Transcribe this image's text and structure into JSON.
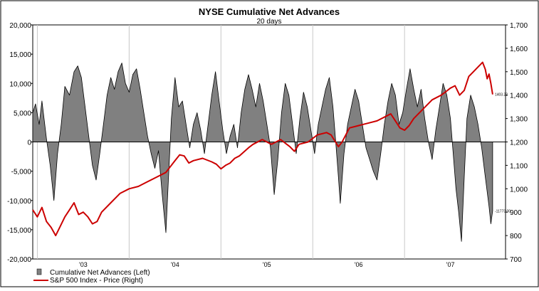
{
  "chart_data": {
    "type": "area",
    "title": "NYSE Cumulative Net Advances",
    "subtitle": "20 days",
    "x_ticks": [
      "'03",
      "'04",
      "'05",
      "'06",
      "'07"
    ],
    "x_range": [
      2002.45,
      2007.6
    ],
    "left_axis": {
      "ticks": [
        "20,000",
        "15,000",
        "10,000",
        "5,000",
        "0",
        "-5,000",
        "-10,000",
        "-15,000",
        "-20,000"
      ],
      "values": [
        20000,
        15000,
        10000,
        5000,
        0,
        -5000,
        -10000,
        -15000,
        -20000
      ],
      "range": [
        -20000,
        20000
      ]
    },
    "right_axis": {
      "ticks": [
        "1,700",
        "1,600",
        "1,500",
        "1,400",
        "1,300",
        "1,200",
        "1,100",
        "1,000",
        "900",
        "800",
        "700"
      ],
      "values": [
        1700,
        1600,
        1500,
        1400,
        1300,
        1200,
        1100,
        1000,
        900,
        800,
        700
      ],
      "range": [
        700,
        1700
      ]
    },
    "grid": "vertical",
    "legend_position": "bottom-left",
    "colors": {
      "net_advances": "#808080",
      "sp500": "#cc0000"
    },
    "last_value_labels": {
      "net_advances": "-11773.00",
      "sp500": "1403.22"
    },
    "series": [
      {
        "name": "Cumulative Net Advances (Left)",
        "axis": "left",
        "points": [
          [
            2002.45,
            5000
          ],
          [
            2002.48,
            6500
          ],
          [
            2002.52,
            3000
          ],
          [
            2002.55,
            7000
          ],
          [
            2002.6,
            500
          ],
          [
            2002.64,
            -4000
          ],
          [
            2002.68,
            -10000
          ],
          [
            2002.72,
            -2000
          ],
          [
            2002.76,
            3000
          ],
          [
            2002.8,
            9500
          ],
          [
            2002.85,
            8000
          ],
          [
            2002.9,
            12000
          ],
          [
            2002.94,
            13000
          ],
          [
            2002.98,
            11000
          ],
          [
            2003.02,
            6000
          ],
          [
            2003.06,
            1000
          ],
          [
            2003.1,
            -4000
          ],
          [
            2003.14,
            -6500
          ],
          [
            2003.18,
            -2000
          ],
          [
            2003.22,
            3000
          ],
          [
            2003.26,
            8000
          ],
          [
            2003.3,
            11000
          ],
          [
            2003.34,
            9000
          ],
          [
            2003.38,
            12000
          ],
          [
            2003.42,
            13500
          ],
          [
            2003.46,
            10000
          ],
          [
            2003.5,
            8500
          ],
          [
            2003.54,
            11500
          ],
          [
            2003.58,
            12500
          ],
          [
            2003.62,
            9000
          ],
          [
            2003.66,
            5000
          ],
          [
            2003.7,
            1000
          ],
          [
            2003.74,
            -2000
          ],
          [
            2003.78,
            -4500
          ],
          [
            2003.82,
            -1500
          ],
          [
            2003.86,
            -9000
          ],
          [
            2003.9,
            -15500
          ],
          [
            2003.92,
            -9000
          ],
          [
            2003.96,
            4000
          ],
          [
            2004.0,
            11000
          ],
          [
            2004.04,
            6000
          ],
          [
            2004.08,
            7000
          ],
          [
            2004.12,
            3000
          ],
          [
            2004.16,
            -1000
          ],
          [
            2004.2,
            3000
          ],
          [
            2004.24,
            5000
          ],
          [
            2004.28,
            2000
          ],
          [
            2004.32,
            -2000
          ],
          [
            2004.36,
            3000
          ],
          [
            2004.4,
            8000
          ],
          [
            2004.44,
            12000
          ],
          [
            2004.48,
            7000
          ],
          [
            2004.52,
            2000
          ],
          [
            2004.56,
            -2000
          ],
          [
            2004.6,
            1000
          ],
          [
            2004.64,
            3000
          ],
          [
            2004.68,
            -1000
          ],
          [
            2004.72,
            5000
          ],
          [
            2004.76,
            9000
          ],
          [
            2004.8,
            11500
          ],
          [
            2004.84,
            9000
          ],
          [
            2004.88,
            6000
          ],
          [
            2004.92,
            10000
          ],
          [
            2004.96,
            7000
          ],
          [
            2005.0,
            3000
          ],
          [
            2005.04,
            -1000
          ],
          [
            2005.06,
            -5000
          ],
          [
            2005.08,
            -9000
          ],
          [
            2005.12,
            -3000
          ],
          [
            2005.16,
            5000
          ],
          [
            2005.2,
            10000
          ],
          [
            2005.24,
            8000
          ],
          [
            2005.28,
            3000
          ],
          [
            2005.32,
            -2000
          ],
          [
            2005.36,
            4000
          ],
          [
            2005.4,
            8500
          ],
          [
            2005.44,
            6000
          ],
          [
            2005.48,
            2000
          ],
          [
            2005.52,
            -2000
          ],
          [
            2005.56,
            3000
          ],
          [
            2005.6,
            6000
          ],
          [
            2005.64,
            9000
          ],
          [
            2005.68,
            11000
          ],
          [
            2005.72,
            6000
          ],
          [
            2005.75,
            0
          ],
          [
            2005.78,
            -6000
          ],
          [
            2005.8,
            -10500
          ],
          [
            2005.84,
            -2000
          ],
          [
            2005.88,
            3000
          ],
          [
            2005.92,
            6000
          ],
          [
            2005.96,
            9000
          ],
          [
            2006.0,
            7000
          ],
          [
            2006.04,
            3000
          ],
          [
            2006.08,
            -1000
          ],
          [
            2006.12,
            -3000
          ],
          [
            2006.16,
            -5000
          ],
          [
            2006.2,
            -6500
          ],
          [
            2006.24,
            -2000
          ],
          [
            2006.28,
            3000
          ],
          [
            2006.32,
            7000
          ],
          [
            2006.36,
            10000
          ],
          [
            2006.4,
            8000
          ],
          [
            2006.44,
            3000
          ],
          [
            2006.48,
            5000
          ],
          [
            2006.52,
            9000
          ],
          [
            2006.56,
            12500
          ],
          [
            2006.6,
            9000
          ],
          [
            2006.64,
            6000
          ],
          [
            2006.68,
            9000
          ],
          [
            2006.72,
            4000
          ],
          [
            2006.76,
            0
          ],
          [
            2006.8,
            -3000
          ],
          [
            2006.84,
            2000
          ],
          [
            2006.88,
            6000
          ],
          [
            2006.92,
            10000
          ],
          [
            2006.96,
            8000
          ],
          [
            2007.0,
            4000
          ],
          [
            2007.03,
            -2000
          ],
          [
            2007.06,
            -8000
          ],
          [
            2007.09,
            -12000
          ],
          [
            2007.12,
            -17000
          ],
          [
            2007.15,
            -6000
          ],
          [
            2007.18,
            4000
          ],
          [
            2007.22,
            8000
          ],
          [
            2007.26,
            6000
          ],
          [
            2007.3,
            3000
          ],
          [
            2007.34,
            -1000
          ],
          [
            2007.38,
            -6000
          ],
          [
            2007.42,
            -11000
          ],
          [
            2007.44,
            -14000
          ],
          [
            2007.46,
            -11773
          ]
        ]
      },
      {
        "name": "S&P 500 Index - Price  (Right)",
        "axis": "right",
        "points": [
          [
            2002.45,
            910
          ],
          [
            2002.5,
            880
          ],
          [
            2002.55,
            920
          ],
          [
            2002.6,
            860
          ],
          [
            2002.65,
            835
          ],
          [
            2002.7,
            800
          ],
          [
            2002.75,
            840
          ],
          [
            2002.8,
            880
          ],
          [
            2002.85,
            910
          ],
          [
            2002.9,
            940
          ],
          [
            2002.95,
            890
          ],
          [
            2003.0,
            900
          ],
          [
            2003.05,
            880
          ],
          [
            2003.1,
            850
          ],
          [
            2003.15,
            860
          ],
          [
            2003.2,
            900
          ],
          [
            2003.3,
            940
          ],
          [
            2003.4,
            980
          ],
          [
            2003.5,
            1000
          ],
          [
            2003.6,
            1010
          ],
          [
            2003.7,
            1030
          ],
          [
            2003.8,
            1050
          ],
          [
            2003.9,
            1070
          ],
          [
            2004.0,
            1120
          ],
          [
            2004.05,
            1145
          ],
          [
            2004.1,
            1140
          ],
          [
            2004.15,
            1110
          ],
          [
            2004.2,
            1120
          ],
          [
            2004.3,
            1130
          ],
          [
            2004.4,
            1115
          ],
          [
            2004.45,
            1105
          ],
          [
            2004.5,
            1085
          ],
          [
            2004.55,
            1100
          ],
          [
            2004.6,
            1110
          ],
          [
            2004.65,
            1130
          ],
          [
            2004.7,
            1140
          ],
          [
            2004.8,
            1175
          ],
          [
            2004.85,
            1190
          ],
          [
            2004.95,
            1210
          ],
          [
            2005.0,
            1200
          ],
          [
            2005.05,
            1190
          ],
          [
            2005.1,
            1200
          ],
          [
            2005.15,
            1210
          ],
          [
            2005.25,
            1180
          ],
          [
            2005.3,
            1160
          ],
          [
            2005.35,
            1190
          ],
          [
            2005.45,
            1200
          ],
          [
            2005.55,
            1230
          ],
          [
            2005.65,
            1240
          ],
          [
            2005.7,
            1230
          ],
          [
            2005.78,
            1180
          ],
          [
            2005.82,
            1200
          ],
          [
            2005.9,
            1260
          ],
          [
            2006.0,
            1270
          ],
          [
            2006.1,
            1280
          ],
          [
            2006.2,
            1290
          ],
          [
            2006.3,
            1310
          ],
          [
            2006.35,
            1320
          ],
          [
            2006.4,
            1290
          ],
          [
            2006.45,
            1260
          ],
          [
            2006.5,
            1250
          ],
          [
            2006.55,
            1270
          ],
          [
            2006.6,
            1300
          ],
          [
            2006.7,
            1340
          ],
          [
            2006.8,
            1380
          ],
          [
            2006.9,
            1400
          ],
          [
            2006.95,
            1415
          ],
          [
            2007.0,
            1430
          ],
          [
            2007.05,
            1440
          ],
          [
            2007.1,
            1400
          ],
          [
            2007.15,
            1420
          ],
          [
            2007.2,
            1480
          ],
          [
            2007.25,
            1500
          ],
          [
            2007.3,
            1520
          ],
          [
            2007.35,
            1540
          ],
          [
            2007.38,
            1510
          ],
          [
            2007.4,
            1470
          ],
          [
            2007.42,
            1490
          ],
          [
            2007.44,
            1450
          ],
          [
            2007.46,
            1403
          ]
        ]
      }
    ]
  },
  "legend": {
    "items": [
      "Cumulative Net Advances (Left)",
      "S&P 500 Index - Price  (Right)"
    ]
  }
}
